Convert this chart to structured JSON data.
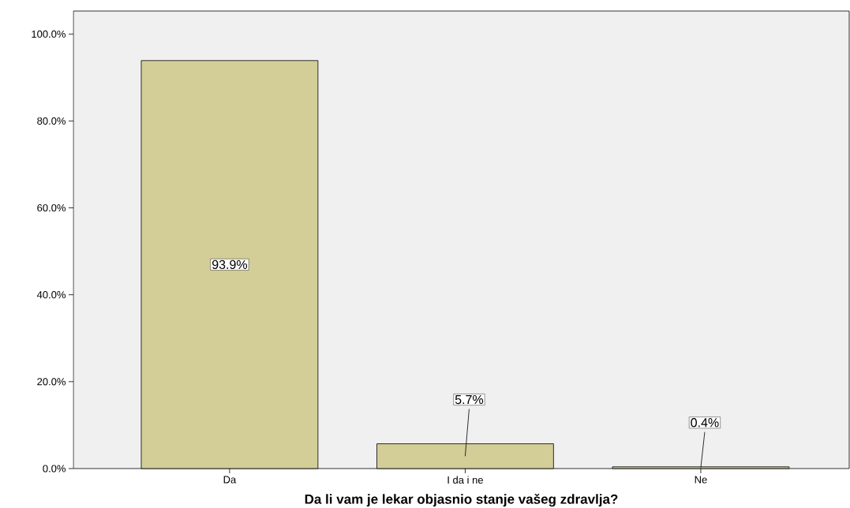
{
  "chart_data": {
    "type": "bar",
    "xlabel": "Da li vam je lekar objasnio stanje vašeg zdravlja?",
    "categories": [
      "Da",
      "I da i ne",
      "Ne"
    ],
    "values": [
      93.9,
      5.7,
      0.4
    ],
    "value_labels": [
      "93.9%",
      "5.7%",
      "0.4%"
    ],
    "color": "#d3cd98",
    "ylim": [
      0,
      105.3
    ],
    "yticks": [
      {
        "value": 0,
        "label": "0.0%"
      },
      {
        "value": 20,
        "label": "20.0%"
      },
      {
        "value": 40,
        "label": "40.0%"
      },
      {
        "value": 60,
        "label": "60.0%"
      },
      {
        "value": 80,
        "label": "80.0%"
      },
      {
        "value": 100,
        "label": "100.0%"
      }
    ],
    "grid": false
  }
}
